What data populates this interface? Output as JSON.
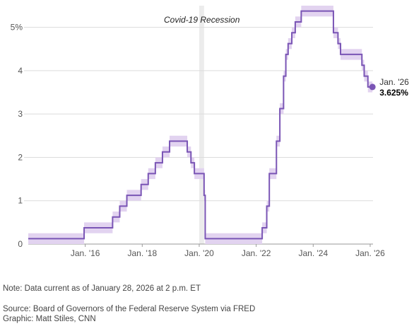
{
  "chart_data": {
    "type": "line",
    "title": "",
    "xlabel": "",
    "ylabel": "",
    "y_ticks": [
      {
        "value": 0,
        "label": "0"
      },
      {
        "value": 1,
        "label": "1"
      },
      {
        "value": 2,
        "label": "2"
      },
      {
        "value": 3,
        "label": "3"
      },
      {
        "value": 4,
        "label": "4"
      },
      {
        "value": 5,
        "label": "5%"
      }
    ],
    "x_ticks": [
      {
        "value": 2016,
        "label": "Jan. '16"
      },
      {
        "value": 2018,
        "label": "Jan. '18"
      },
      {
        "value": 2020,
        "label": "Jan. '20"
      },
      {
        "value": 2022,
        "label": "Jan. '22"
      },
      {
        "value": 2024,
        "label": "Jan. '24"
      },
      {
        "value": 2026,
        "label": "Jan. '26"
      }
    ],
    "xlim": [
      2014.0,
      2026.1
    ],
    "ylim": [
      0,
      5.5
    ],
    "grid": true,
    "recession": {
      "label": "Covid-19 Recession",
      "start": 2020.0,
      "end": 2020.17
    },
    "end_annotation": {
      "date_label": "Jan. '26",
      "value_label": "3.625%"
    },
    "series": [
      {
        "color": "#7a55b5",
        "band_color": "#e2d3f0",
        "band_halfwidth": 0.125,
        "step": true,
        "points": [
          {
            "x": 2014.0,
            "y": 0.125
          },
          {
            "x": 2015.96,
            "y": 0.375
          },
          {
            "x": 2016.96,
            "y": 0.625
          },
          {
            "x": 2017.21,
            "y": 0.875
          },
          {
            "x": 2017.46,
            "y": 1.125
          },
          {
            "x": 2017.96,
            "y": 1.375
          },
          {
            "x": 2018.21,
            "y": 1.625
          },
          {
            "x": 2018.46,
            "y": 1.875
          },
          {
            "x": 2018.71,
            "y": 2.125
          },
          {
            "x": 2018.96,
            "y": 2.375
          },
          {
            "x": 2019.58,
            "y": 2.125
          },
          {
            "x": 2019.71,
            "y": 1.875
          },
          {
            "x": 2019.83,
            "y": 1.625
          },
          {
            "x": 2020.17,
            "y": 1.125
          },
          {
            "x": 2020.21,
            "y": 0.125
          },
          {
            "x": 2022.21,
            "y": 0.375
          },
          {
            "x": 2022.37,
            "y": 0.875
          },
          {
            "x": 2022.46,
            "y": 1.625
          },
          {
            "x": 2022.71,
            "y": 2.375
          },
          {
            "x": 2022.83,
            "y": 3.125
          },
          {
            "x": 2022.96,
            "y": 3.875
          },
          {
            "x": 2023.04,
            "y": 4.375
          },
          {
            "x": 2023.12,
            "y": 4.625
          },
          {
            "x": 2023.25,
            "y": 4.875
          },
          {
            "x": 2023.37,
            "y": 5.125
          },
          {
            "x": 2023.58,
            "y": 5.375
          },
          {
            "x": 2024.71,
            "y": 4.875
          },
          {
            "x": 2024.87,
            "y": 4.625
          },
          {
            "x": 2024.96,
            "y": 4.375
          },
          {
            "x": 2025.71,
            "y": 4.125
          },
          {
            "x": 2025.79,
            "y": 3.875
          },
          {
            "x": 2025.92,
            "y": 3.625
          },
          {
            "x": 2026.08,
            "y": 3.625
          }
        ]
      }
    ]
  },
  "footer": {
    "note": "Note: Data current as of January 28, 2026 at 2 p.m. ET",
    "source": "Source: Board of Governors of the Federal Reserve System via FRED",
    "credit": "Graphic: Matt Stiles, CNN"
  }
}
